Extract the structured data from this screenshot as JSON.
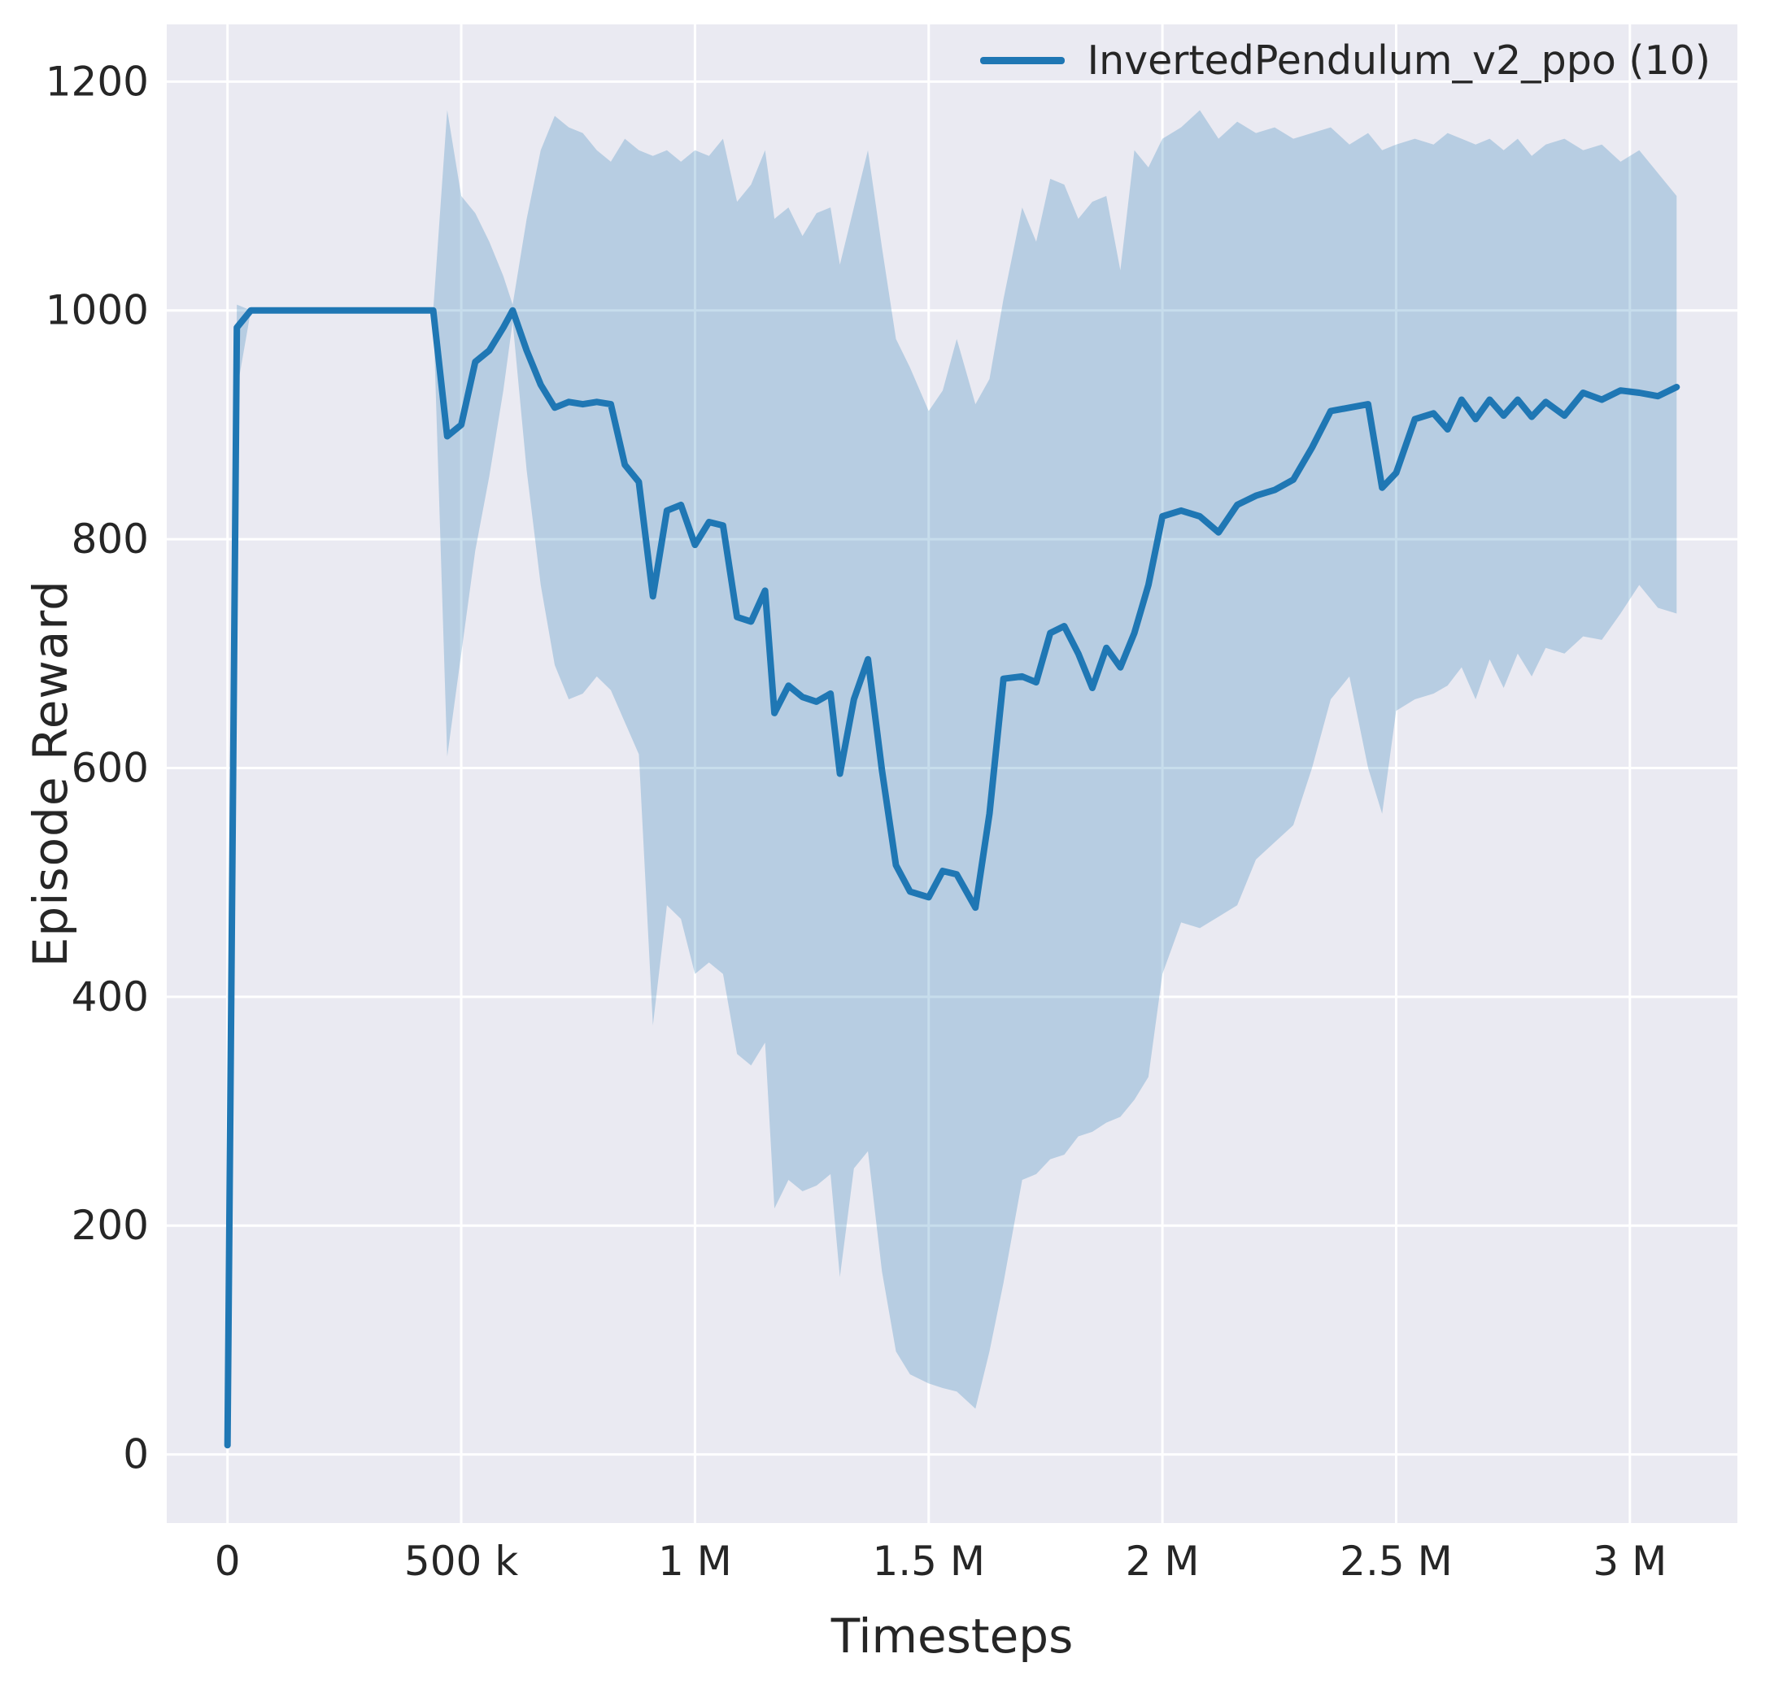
{
  "figure": {
    "legend_label": "InvertedPendulum_v2_ppo (10)"
  },
  "chart_data": {
    "type": "line",
    "title": "",
    "xlabel": "Timesteps",
    "ylabel": "Episode Reward",
    "legend": [
      "InvertedPendulum_v2_ppo (10)"
    ],
    "legend_position": "upper right",
    "grid": true,
    "xlim": [
      -130000,
      3230000
    ],
    "ylim": [
      -60,
      1250
    ],
    "xticks": {
      "values": [
        0,
        500000,
        1000000,
        1500000,
        2000000,
        2500000,
        3000000
      ],
      "labels": [
        "0",
        "500 k",
        "1 M",
        "1.5 M",
        "2 M",
        "2.5 M",
        "3 M"
      ]
    },
    "yticks": {
      "values": [
        0,
        200,
        400,
        600,
        800,
        1000,
        1200
      ],
      "labels": [
        "0",
        "200",
        "400",
        "600",
        "800",
        "1000",
        "1200"
      ]
    },
    "style": {
      "background": "#eaeaf2",
      "grid_color": "#ffffff",
      "line_color": "#1f77b4",
      "band_color": "#1f77b4",
      "band_opacity": 0.25,
      "text_color": "#262626",
      "line_width": 8
    },
    "series": [
      {
        "name": "InvertedPendulum_v2_ppo (10)",
        "x": [
          0,
          20000,
          50000,
          100000,
          150000,
          200000,
          250000,
          300000,
          350000,
          400000,
          440000,
          470000,
          500000,
          530000,
          560000,
          590000,
          610000,
          640000,
          670000,
          700000,
          730000,
          760000,
          790000,
          820000,
          850000,
          880000,
          910000,
          940000,
          970000,
          1000000,
          1030000,
          1060000,
          1090000,
          1120000,
          1150000,
          1170000,
          1200000,
          1230000,
          1260000,
          1290000,
          1310000,
          1340000,
          1370000,
          1400000,
          1430000,
          1460000,
          1500000,
          1530000,
          1560000,
          1600000,
          1630000,
          1660000,
          1700000,
          1730000,
          1760000,
          1790000,
          1820000,
          1850000,
          1880000,
          1910000,
          1940000,
          1970000,
          2000000,
          2040000,
          2080000,
          2120000,
          2160000,
          2200000,
          2240000,
          2280000,
          2320000,
          2360000,
          2400000,
          2440000,
          2470000,
          2500000,
          2540000,
          2580000,
          2610000,
          2640000,
          2670000,
          2700000,
          2730000,
          2760000,
          2790000,
          2820000,
          2860000,
          2900000,
          2940000,
          2980000,
          3020000,
          3060000,
          3100000
        ],
        "mean": [
          8,
          985,
          1000,
          1000,
          1000,
          1000,
          1000,
          1000,
          1000,
          1000,
          1000,
          890,
          900,
          955,
          965,
          985,
          1000,
          965,
          935,
          915,
          920,
          918,
          920,
          918,
          865,
          850,
          750,
          825,
          830,
          795,
          815,
          812,
          732,
          728,
          755,
          648,
          672,
          662,
          658,
          665,
          595,
          660,
          695,
          598,
          515,
          492,
          487,
          510,
          507,
          478,
          560,
          678,
          680,
          675,
          718,
          724,
          700,
          670,
          705,
          688,
          718,
          760,
          820,
          825,
          820,
          806,
          830,
          838,
          843,
          852,
          880,
          912,
          915,
          918,
          845,
          858,
          905,
          910,
          896,
          922,
          905,
          922,
          908,
          922,
          907,
          920,
          908,
          928,
          922,
          930,
          928,
          925,
          933
        ],
        "band_lower": [
          5,
          930,
          1000,
          1000,
          1000,
          1000,
          1000,
          1000,
          1000,
          1000,
          1000,
          610,
          700,
          790,
          855,
          930,
          990,
          860,
          760,
          690,
          660,
          665,
          680,
          668,
          640,
          612,
          375,
          480,
          468,
          420,
          430,
          420,
          350,
          340,
          360,
          215,
          240,
          230,
          235,
          245,
          155,
          250,
          265,
          160,
          90,
          70,
          62,
          58,
          55,
          40,
          90,
          150,
          240,
          245,
          258,
          262,
          278,
          282,
          290,
          295,
          310,
          330,
          420,
          465,
          460,
          470,
          480,
          520,
          535,
          550,
          600,
          660,
          680,
          600,
          560,
          650,
          660,
          665,
          672,
          688,
          660,
          695,
          670,
          700,
          680,
          705,
          700,
          715,
          712,
          735,
          760,
          740,
          735
        ],
        "band_upper": [
          10,
          1005,
          1000,
          1000,
          1000,
          1000,
          1000,
          1000,
          1000,
          1000,
          1000,
          1175,
          1100,
          1085,
          1060,
          1030,
          1005,
          1080,
          1140,
          1170,
          1160,
          1155,
          1140,
          1130,
          1150,
          1140,
          1135,
          1140,
          1130,
          1140,
          1135,
          1150,
          1095,
          1110,
          1140,
          1080,
          1090,
          1065,
          1085,
          1090,
          1040,
          1090,
          1140,
          1055,
          975,
          950,
          912,
          930,
          975,
          918,
          940,
          1010,
          1090,
          1060,
          1115,
          1110,
          1080,
          1095,
          1100,
          1035,
          1140,
          1125,
          1150,
          1160,
          1175,
          1150,
          1165,
          1155,
          1160,
          1150,
          1155,
          1160,
          1145,
          1155,
          1140,
          1145,
          1150,
          1145,
          1155,
          1150,
          1145,
          1150,
          1140,
          1150,
          1135,
          1145,
          1150,
          1140,
          1145,
          1130,
          1140,
          1120,
          1100
        ]
      }
    ]
  }
}
